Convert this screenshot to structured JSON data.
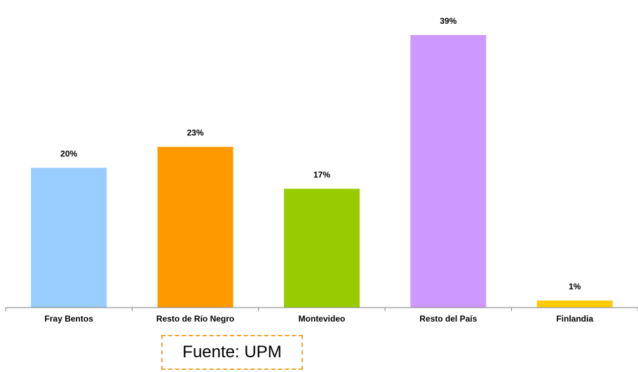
{
  "chart_data": {
    "type": "bar",
    "categories": [
      "Fray Bentos",
      "Resto de Río Negro",
      "Montevideo",
      "Resto del País",
      "Finlandia"
    ],
    "values": [
      20,
      23,
      17,
      39,
      1
    ],
    "value_labels": [
      "20%",
      "23%",
      "17%",
      "39%",
      "1%"
    ],
    "colors": [
      "#99ccff",
      "#ff9900",
      "#99cc00",
      "#cc99ff",
      "#ffcc00"
    ],
    "unit": "%",
    "ylim": [
      0,
      39
    ],
    "grid": false,
    "legend": "none"
  },
  "source_note": "Fuente: UPM"
}
